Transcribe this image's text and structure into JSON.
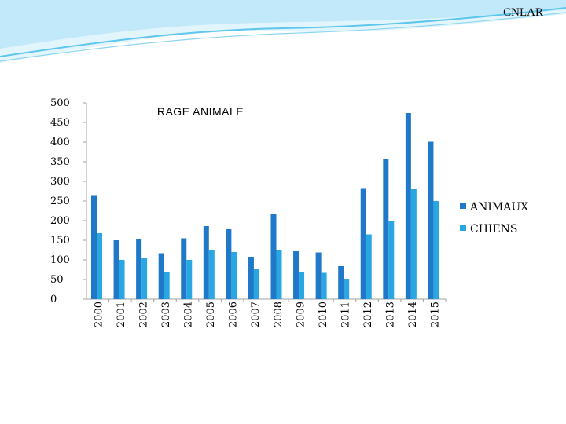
{
  "header": {
    "brand": "CNLAR"
  },
  "colors": {
    "animaux": "#1f78c8",
    "chiens": "#2aa7e3",
    "axis": "#a0a0a0",
    "wave1": "#5ec6ec",
    "wave2": "#b9e6f7"
  },
  "chart_data": {
    "type": "bar",
    "title": "RAGE  ANIMALE",
    "categories": [
      "2000",
      "2001",
      "2002",
      "2003",
      "2004",
      "2005",
      "2006",
      "2007",
      "2008",
      "2009",
      "2010",
      "2011",
      "2012",
      "2013",
      "2014",
      "2015"
    ],
    "series": [
      {
        "name": "ANIMAUX",
        "values": [
          265,
          150,
          153,
          117,
          155,
          186,
          178,
          108,
          217,
          122,
          119,
          84,
          281,
          358,
          474,
          401
        ]
      },
      {
        "name": "CHIENS",
        "values": [
          168,
          100,
          105,
          70,
          100,
          126,
          120,
          77,
          126,
          70,
          67,
          52,
          165,
          198,
          280,
          250
        ]
      }
    ],
    "yticks": [
      0,
      50,
      100,
      150,
      200,
      250,
      300,
      350,
      400,
      450,
      500
    ],
    "ylim": [
      0,
      500
    ],
    "legend": "right"
  }
}
